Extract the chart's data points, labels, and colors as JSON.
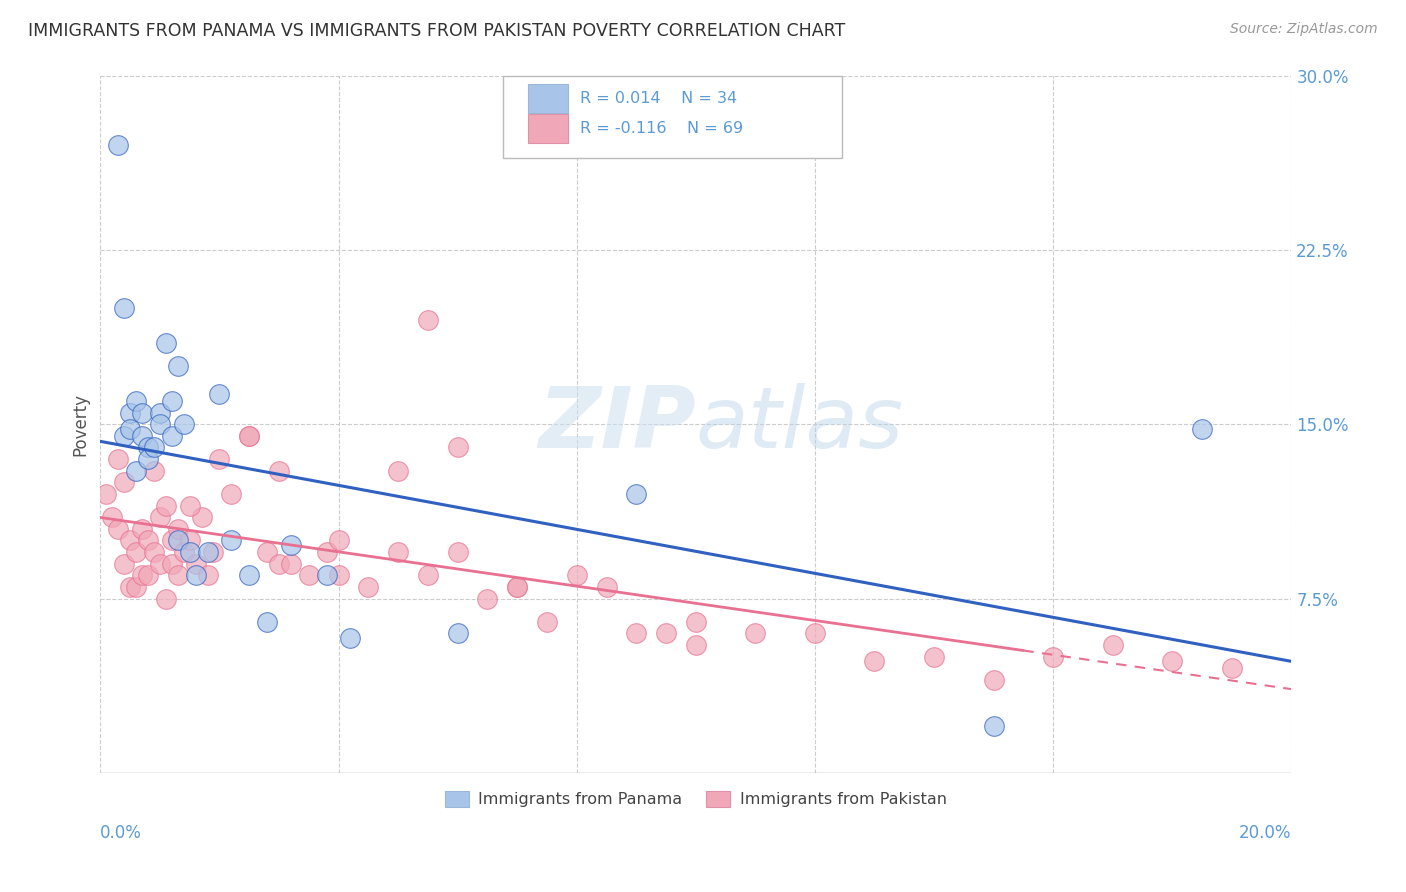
{
  "title": "IMMIGRANTS FROM PANAMA VS IMMIGRANTS FROM PAKISTAN POVERTY CORRELATION CHART",
  "source": "Source: ZipAtlas.com",
  "ylabel": "Poverty",
  "xlim": [
    0.0,
    0.2
  ],
  "ylim": [
    0.0,
    0.3
  ],
  "panama_color": "#a8c4e8",
  "pakistan_color": "#f0a8b8",
  "panama_line_color": "#3060c0",
  "pakistan_line_color": "#e87090",
  "panama_label": "Immigrants from Panama",
  "pakistan_label": "Immigrants from Pakistan",
  "watermark_zip": "ZIP",
  "watermark_atlas": "atlas",
  "background_color": "#ffffff",
  "grid_color": "#cccccc",
  "panama_scatter_x": [
    0.003,
    0.004,
    0.004,
    0.005,
    0.005,
    0.006,
    0.006,
    0.007,
    0.007,
    0.008,
    0.008,
    0.009,
    0.01,
    0.01,
    0.011,
    0.012,
    0.012,
    0.013,
    0.013,
    0.014,
    0.015,
    0.016,
    0.018,
    0.02,
    0.022,
    0.025,
    0.028,
    0.032,
    0.038,
    0.042,
    0.06,
    0.09,
    0.15,
    0.185
  ],
  "panama_scatter_y": [
    0.27,
    0.145,
    0.2,
    0.155,
    0.148,
    0.16,
    0.13,
    0.155,
    0.145,
    0.14,
    0.135,
    0.14,
    0.155,
    0.15,
    0.185,
    0.145,
    0.16,
    0.1,
    0.175,
    0.15,
    0.095,
    0.085,
    0.095,
    0.163,
    0.1,
    0.085,
    0.065,
    0.098,
    0.085,
    0.058,
    0.06,
    0.12,
    0.02,
    0.148
  ],
  "pakistan_scatter_x": [
    0.001,
    0.002,
    0.003,
    0.003,
    0.004,
    0.004,
    0.005,
    0.005,
    0.006,
    0.006,
    0.007,
    0.007,
    0.008,
    0.008,
    0.009,
    0.009,
    0.01,
    0.01,
    0.011,
    0.011,
    0.012,
    0.012,
    0.013,
    0.013,
    0.014,
    0.015,
    0.016,
    0.017,
    0.018,
    0.019,
    0.02,
    0.022,
    0.025,
    0.028,
    0.03,
    0.032,
    0.035,
    0.038,
    0.04,
    0.045,
    0.05,
    0.055,
    0.06,
    0.065,
    0.07,
    0.08,
    0.09,
    0.1,
    0.11,
    0.12,
    0.13,
    0.14,
    0.15,
    0.16,
    0.17,
    0.18,
    0.19,
    0.055,
    0.075,
    0.095,
    0.015,
    0.025,
    0.03,
    0.04,
    0.05,
    0.06,
    0.07,
    0.085,
    0.1
  ],
  "pakistan_scatter_y": [
    0.12,
    0.11,
    0.135,
    0.105,
    0.125,
    0.09,
    0.1,
    0.08,
    0.095,
    0.08,
    0.105,
    0.085,
    0.1,
    0.085,
    0.13,
    0.095,
    0.11,
    0.09,
    0.115,
    0.075,
    0.1,
    0.09,
    0.105,
    0.085,
    0.095,
    0.1,
    0.09,
    0.11,
    0.085,
    0.095,
    0.135,
    0.12,
    0.145,
    0.095,
    0.09,
    0.09,
    0.085,
    0.095,
    0.085,
    0.08,
    0.095,
    0.085,
    0.095,
    0.075,
    0.08,
    0.085,
    0.06,
    0.055,
    0.06,
    0.06,
    0.048,
    0.05,
    0.04,
    0.05,
    0.055,
    0.048,
    0.045,
    0.195,
    0.065,
    0.06,
    0.115,
    0.145,
    0.13,
    0.1,
    0.13,
    0.14,
    0.08,
    0.08,
    0.065
  ]
}
